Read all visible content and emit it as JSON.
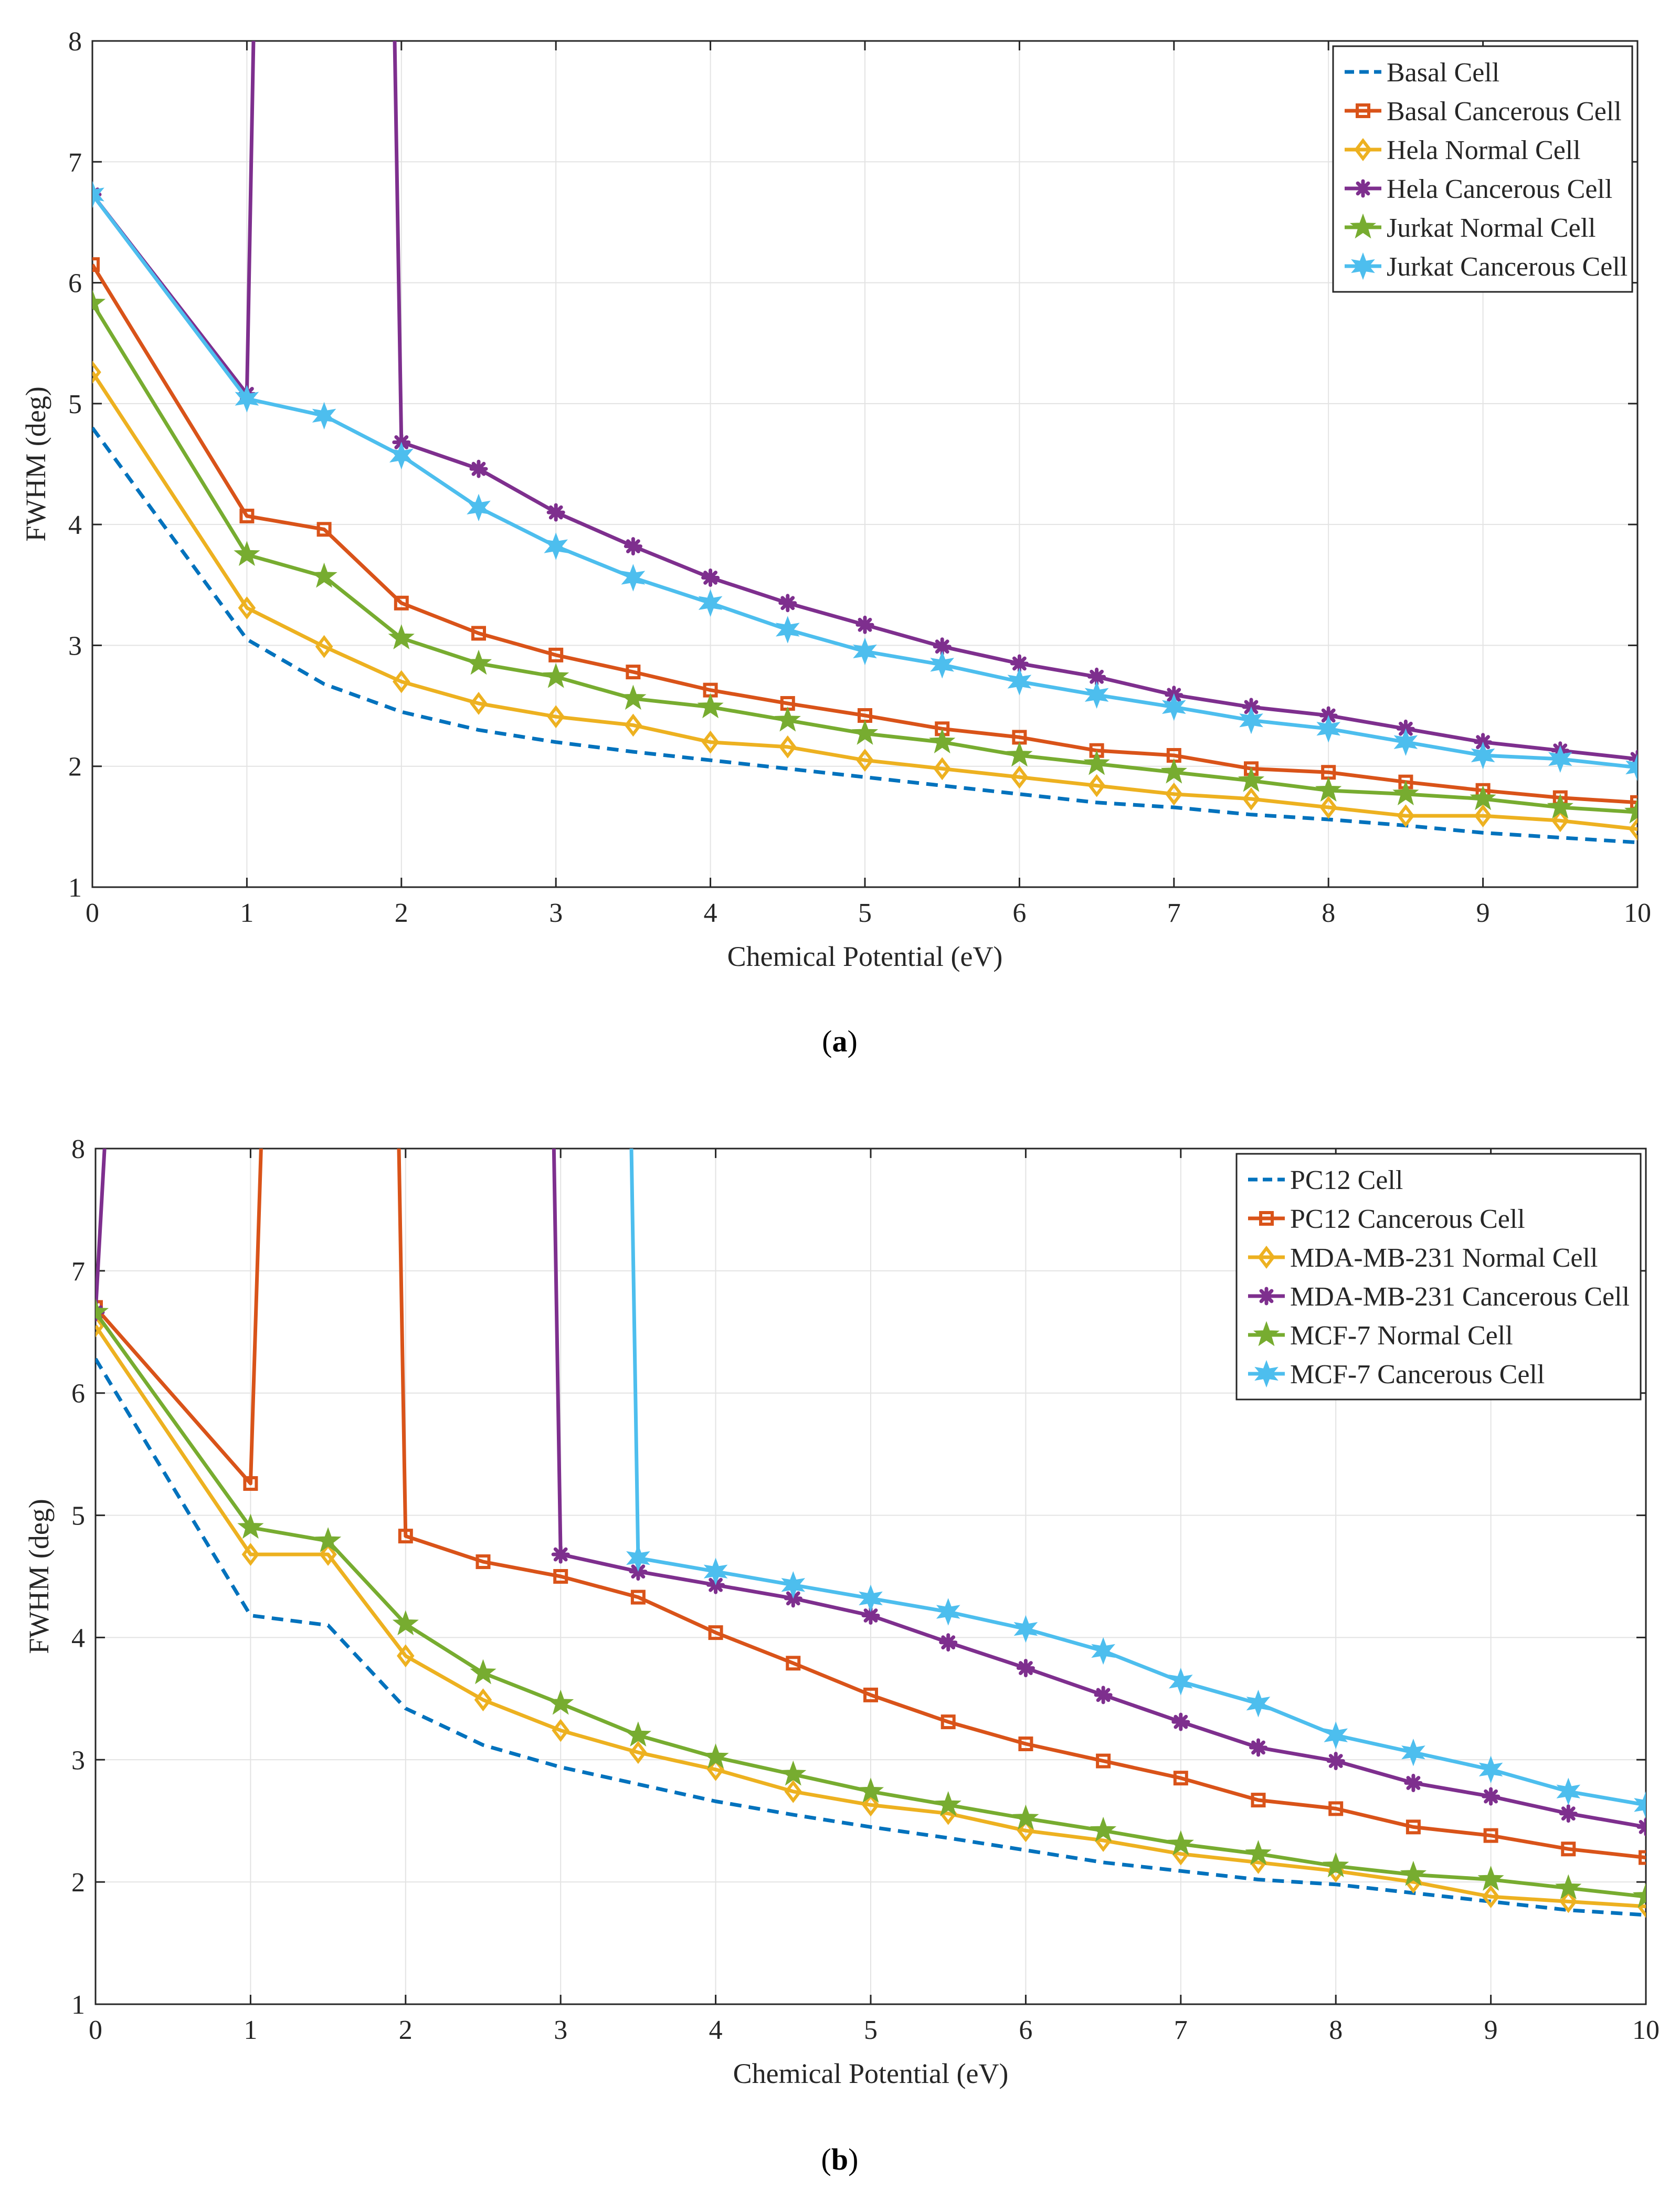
{
  "chart_data": [
    {
      "type": "line",
      "panel_label": "a",
      "xlabel": "Chemical Potential (eV)",
      "ylabel": "FWHM (deg)",
      "xlim": [
        0,
        10
      ],
      "ylim": [
        1,
        8
      ],
      "xticks": [
        "0",
        "1",
        "2",
        "3",
        "4",
        "5",
        "6",
        "7",
        "8",
        "9",
        "10"
      ],
      "yticks": [
        "1",
        "2",
        "3",
        "4",
        "5",
        "6",
        "7",
        "8"
      ],
      "grid": true,
      "legend_position": "top-right",
      "x": [
        0,
        1,
        1.5,
        2,
        2.5,
        3,
        3.5,
        4,
        4.5,
        5,
        5.5,
        6,
        6.5,
        7,
        7.5,
        8,
        8.5,
        9,
        9.5,
        10
      ],
      "series": [
        {
          "name": "Basal Cell",
          "color": "#0072BD",
          "marker": "none",
          "dashed": true,
          "values": [
            4.8,
            3.05,
            2.68,
            2.45,
            2.3,
            2.2,
            2.12,
            2.05,
            1.98,
            1.91,
            1.84,
            1.77,
            1.7,
            1.66,
            1.6,
            1.56,
            1.51,
            1.45,
            1.41,
            1.37
          ]
        },
        {
          "name": "Basal Cancerous Cell",
          "color": "#D95319",
          "marker": "square",
          "values": [
            6.15,
            4.07,
            3.96,
            3.35,
            3.1,
            2.92,
            2.78,
            2.63,
            2.52,
            2.42,
            2.31,
            2.24,
            2.13,
            2.09,
            1.98,
            1.95,
            1.87,
            1.8,
            1.74,
            1.7
          ]
        },
        {
          "name": "Hela Normal Cell",
          "color": "#EDB120",
          "marker": "diamond",
          "values": [
            5.26,
            3.31,
            2.99,
            2.7,
            2.52,
            2.41,
            2.34,
            2.2,
            2.16,
            2.05,
            1.98,
            1.91,
            1.84,
            1.77,
            1.73,
            1.66,
            1.59,
            1.59,
            1.55,
            1.48
          ]
        },
        {
          "name": "Hela Cancerous Cell",
          "color": "#7E2F8E",
          "marker": "asterisk",
          "values": [
            6.73,
            5.08,
            null,
            4.68,
            4.46,
            4.1,
            3.82,
            3.56,
            3.35,
            3.17,
            2.99,
            2.85,
            2.74,
            2.59,
            2.49,
            2.42,
            2.31,
            2.2,
            2.13,
            2.06
          ],
          "spike": {
            "rise_from_x": 1.0,
            "rise_to_x": 1.05,
            "fall_from_x": 1.95,
            "fall_to_x": 2.0,
            "value": 8.5
          }
        },
        {
          "name": "Jurkat Normal Cell",
          "color": "#77AC30",
          "marker": "star5",
          "values": [
            5.83,
            3.75,
            3.57,
            3.06,
            2.85,
            2.74,
            2.56,
            2.49,
            2.38,
            2.27,
            2.2,
            2.09,
            2.02,
            1.95,
            1.88,
            1.8,
            1.77,
            1.73,
            1.66,
            1.62
          ]
        },
        {
          "name": "Jurkat Cancerous Cell",
          "color": "#4DBEEE",
          "marker": "star6",
          "values": [
            6.73,
            5.04,
            4.9,
            4.57,
            4.14,
            3.82,
            3.56,
            3.35,
            3.13,
            2.95,
            2.84,
            2.7,
            2.59,
            2.49,
            2.38,
            2.31,
            2.2,
            2.09,
            2.06,
            1.99
          ]
        }
      ]
    },
    {
      "type": "line",
      "panel_label": "b",
      "xlabel": "Chemical Potential (eV)",
      "ylabel": "FWHM (deg)",
      "xlim": [
        0,
        10
      ],
      "ylim": [
        1,
        8
      ],
      "xticks": [
        "0",
        "1",
        "2",
        "3",
        "4",
        "5",
        "6",
        "7",
        "8",
        "9",
        "10"
      ],
      "yticks": [
        "1",
        "2",
        "3",
        "4",
        "5",
        "6",
        "7",
        "8"
      ],
      "grid": true,
      "legend_position": "top-right",
      "x": [
        0,
        1,
        1.5,
        2,
        2.5,
        3,
        3.5,
        4,
        4.5,
        5,
        5.5,
        6,
        6.5,
        7,
        7.5,
        8,
        8.5,
        9,
        9.5,
        10
      ],
      "series": [
        {
          "name": "PC12 Cell",
          "color": "#0072BD",
          "marker": "none",
          "dashed": true,
          "values": [
            6.28,
            4.18,
            4.1,
            3.42,
            3.12,
            2.94,
            2.8,
            2.66,
            2.55,
            2.45,
            2.36,
            2.26,
            2.16,
            2.09,
            2.02,
            1.98,
            1.91,
            1.84,
            1.77,
            1.73
          ]
        },
        {
          "name": "PC12 Cancerous Cell",
          "color": "#D95319",
          "marker": "square",
          "values": [
            6.7,
            5.26,
            null,
            4.83,
            4.62,
            4.5,
            4.33,
            4.04,
            3.79,
            3.53,
            3.31,
            3.13,
            2.99,
            2.85,
            2.67,
            2.6,
            2.45,
            2.38,
            2.27,
            2.2
          ],
          "spike": {
            "rise_from_x": 1.0,
            "rise_to_x": 1.08,
            "fall_from_x": 1.95,
            "fall_to_x": 2.0,
            "value": 8.5
          }
        },
        {
          "name": "MDA-MB-231 Normal Cell",
          "color": "#EDB120",
          "marker": "diamond",
          "values": [
            6.55,
            4.68,
            4.68,
            3.85,
            3.49,
            3.24,
            3.06,
            2.92,
            2.74,
            2.63,
            2.56,
            2.42,
            2.34,
            2.23,
            2.16,
            2.09,
            2.0,
            1.88,
            1.84,
            1.8
          ]
        },
        {
          "name": "MDA-MB-231 Cancerous Cell",
          "color": "#7E2F8E",
          "marker": "asterisk",
          "values": [
            6.66,
            null,
            null,
            null,
            null,
            4.68,
            4.54,
            4.43,
            4.32,
            4.18,
            3.96,
            3.75,
            3.53,
            3.31,
            3.1,
            2.99,
            2.81,
            2.7,
            2.56,
            2.45
          ],
          "spike": {
            "rise_from_x": 0.0,
            "rise_to_x": 0.08,
            "fall_from_x": 2.95,
            "fall_to_x": 3.0,
            "value": 8.5
          }
        },
        {
          "name": "MCF-7 Normal Cell",
          "color": "#77AC30",
          "marker": "star5",
          "values": [
            6.66,
            4.9,
            4.79,
            4.11,
            3.71,
            3.46,
            3.2,
            3.02,
            2.88,
            2.74,
            2.63,
            2.52,
            2.42,
            2.31,
            2.23,
            2.13,
            2.06,
            2.02,
            1.95,
            1.88
          ]
        },
        {
          "name": "MCF-7 Cancerous Cell",
          "color": "#4DBEEE",
          "marker": "star6",
          "values": [
            null,
            null,
            null,
            null,
            null,
            null,
            4.65,
            4.54,
            4.43,
            4.32,
            4.21,
            4.07,
            3.89,
            3.64,
            3.46,
            3.2,
            3.06,
            2.92,
            2.74,
            2.63
          ],
          "spike": {
            "fall_from_x": 3.45,
            "fall_to_x": 3.5,
            "value": 8.5
          }
        }
      ]
    }
  ]
}
